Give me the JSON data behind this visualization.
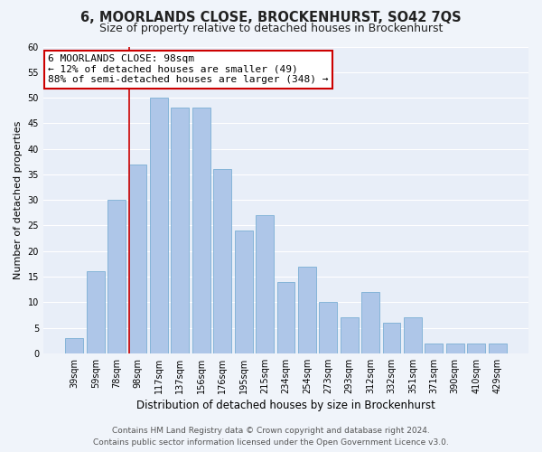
{
  "title": "6, MOORLANDS CLOSE, BROCKENHURST, SO42 7QS",
  "subtitle": "Size of property relative to detached houses in Brockenhurst",
  "xlabel": "Distribution of detached houses by size in Brockenhurst",
  "ylabel": "Number of detached properties",
  "bar_labels": [
    "39sqm",
    "59sqm",
    "78sqm",
    "98sqm",
    "117sqm",
    "137sqm",
    "156sqm",
    "176sqm",
    "195sqm",
    "215sqm",
    "234sqm",
    "254sqm",
    "273sqm",
    "293sqm",
    "312sqm",
    "332sqm",
    "351sqm",
    "371sqm",
    "390sqm",
    "410sqm",
    "429sqm"
  ],
  "bar_values": [
    3,
    16,
    30,
    37,
    50,
    48,
    48,
    36,
    24,
    27,
    14,
    17,
    10,
    7,
    12,
    6,
    7,
    2,
    2,
    2,
    2
  ],
  "bar_color": "#aec6e8",
  "bar_edge_color": "#7aafd4",
  "highlight_index": 3,
  "highlight_line_color": "#cc0000",
  "ylim": [
    0,
    60
  ],
  "yticks": [
    0,
    5,
    10,
    15,
    20,
    25,
    30,
    35,
    40,
    45,
    50,
    55,
    60
  ],
  "annotation_line1": "6 MOORLANDS CLOSE: 98sqm",
  "annotation_line2": "← 12% of detached houses are smaller (49)",
  "annotation_line3": "88% of semi-detached houses are larger (348) →",
  "annotation_box_color": "#ffffff",
  "annotation_box_edge_color": "#cc0000",
  "footer_line1": "Contains HM Land Registry data © Crown copyright and database right 2024.",
  "footer_line2": "Contains public sector information licensed under the Open Government Licence v3.0.",
  "bg_color": "#f0f4fa",
  "plot_bg_color": "#e8eef8",
  "grid_color": "#ffffff",
  "title_fontsize": 10.5,
  "subtitle_fontsize": 9,
  "xlabel_fontsize": 8.5,
  "ylabel_fontsize": 8,
  "tick_fontsize": 7,
  "footer_fontsize": 6.5,
  "annotation_fontsize": 8
}
